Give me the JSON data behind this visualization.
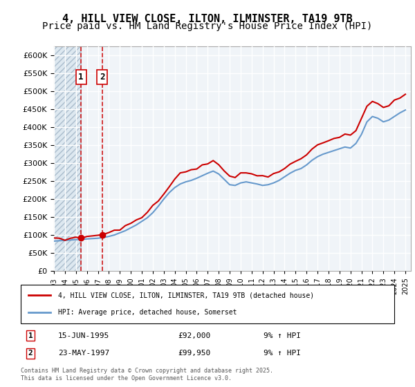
{
  "title": "4, HILL VIEW CLOSE, ILTON, ILMINSTER, TA19 9TB",
  "subtitle": "Price paid vs. HM Land Registry's House Price Index (HPI)",
  "legend_line1": "4, HILL VIEW CLOSE, ILTON, ILMINSTER, TA19 9TB (detached house)",
  "legend_line2": "HPI: Average price, detached house, Somerset",
  "annotation1_label": "1",
  "annotation1_date": "15-JUN-1995",
  "annotation1_price": "£92,000",
  "annotation1_hpi": "9% ↑ HPI",
  "annotation2_label": "2",
  "annotation2_date": "23-MAY-1997",
  "annotation2_price": "£99,950",
  "annotation2_hpi": "9% ↑ HPI",
  "footer": "Contains HM Land Registry data © Crown copyright and database right 2025.\nThis data is licensed under the Open Government Licence v3.0.",
  "sale1_year": 1995.46,
  "sale1_price": 92000,
  "sale2_year": 1997.39,
  "sale2_price": 99950,
  "hatch_color": "#c8d8e8",
  "hatch_pattern": "////",
  "line_color_red": "#cc0000",
  "line_color_blue": "#6699cc",
  "dashed_line_color": "#cc0000",
  "background_plot": "#f0f4f8",
  "background_hatch": "#c8d8e8",
  "grid_color": "#ffffff",
  "ylim_min": 0,
  "ylim_max": 625000,
  "yticks": [
    0,
    50000,
    100000,
    150000,
    200000,
    250000,
    300000,
    350000,
    400000,
    450000,
    500000,
    550000,
    600000
  ],
  "xlim_min": 1993,
  "xlim_max": 2025.5,
  "title_fontsize": 11,
  "subtitle_fontsize": 10
}
